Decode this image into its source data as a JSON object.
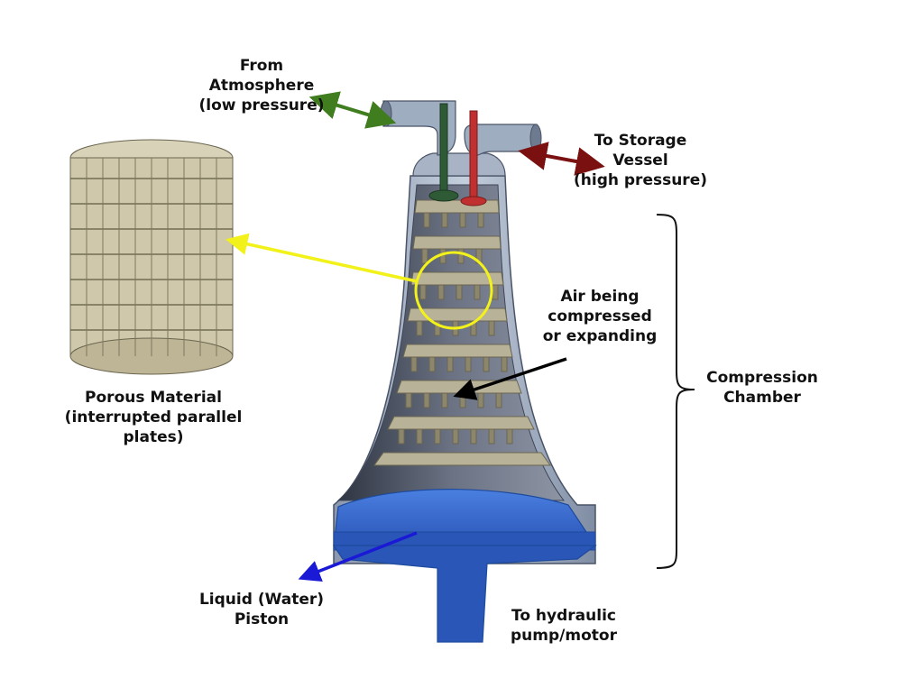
{
  "labels": {
    "atmosphere": [
      "From",
      "Atmosphere",
      "(low pressure)"
    ],
    "storage": [
      "To Storage",
      "Vessel",
      "(high pressure)"
    ],
    "porous": [
      "Porous Material",
      "(interrupted parallel",
      "plates)"
    ],
    "air": [
      "Air being",
      "compressed",
      "or expanding"
    ],
    "chamber": [
      "Compression",
      "Chamber"
    ],
    "piston": [
      "Liquid (Water)",
      "Piston"
    ],
    "hydraulic": [
      "To hydraulic",
      "pump/motor"
    ]
  },
  "colors": {
    "atmosphere_arrow": "#3f7d1f",
    "storage_arrow": "#7a1010",
    "porous_arrow": "#f2f21a",
    "air_arrow": "#000000",
    "piston_arrow": "#1a1ad6",
    "water": "#3a6fd6",
    "water_dark": "#1e4a9c",
    "steel": "#9aa8bd",
    "steel_dark": "#5f6e86",
    "plate": "#b8b298",
    "plate_dark": "#8c866c",
    "valve_intake": "#2e5a36",
    "valve_exhaust": "#c03030"
  }
}
